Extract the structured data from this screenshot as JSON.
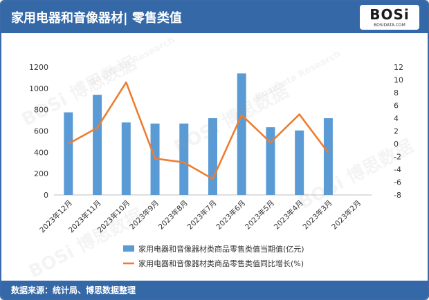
{
  "header": {
    "title": "家用电器和音像器材| 零售类值"
  },
  "logo": {
    "word": "BOSi",
    "sub": "BOSIDATA.COM"
  },
  "watermark": {
    "word": "BOSi",
    "cn": "博思数据",
    "en": "BosiData Research"
  },
  "footer": {
    "source": "数据来源：统计局、博思数据整理"
  },
  "colors": {
    "header_bg": "#3568a6",
    "bar": "#5b9bd5",
    "line": "#ed7d31"
  },
  "chart_data": {
    "type": "bar+line",
    "categories": [
      "2023年12月",
      "2023年11月",
      "2023年10月",
      "2023年9月",
      "2023年8月",
      "2023年7月",
      "2023年6月",
      "2023年5月",
      "2023年4月",
      "2023年3月",
      "2023年2月"
    ],
    "series": [
      {
        "name": "家用电器和音像器材类商品零售类值当期值(亿元)",
        "type": "bar",
        "axis": "left",
        "values": [
          775,
          940,
          680,
          670,
          670,
          720,
          1140,
          635,
          605,
          720,
          null
        ]
      },
      {
        "name": "家用电器和音像器材类商品零售类值同比增长(%)",
        "type": "line",
        "axis": "right",
        "values": [
          0.0,
          2.5,
          9.6,
          -2.3,
          -2.9,
          -5.5,
          4.5,
          0.2,
          4.6,
          -1.4,
          null
        ]
      }
    ],
    "y_left": {
      "min": 0,
      "max": 1200,
      "step": 200,
      "ticks": [
        "0",
        "200",
        "400",
        "600",
        "800",
        "1000",
        "1200"
      ]
    },
    "y_right": {
      "min": -8,
      "max": 12,
      "step": 2,
      "ticks": [
        "-8",
        "-6",
        "-4",
        "-2",
        "0",
        "2",
        "4",
        "6",
        "8",
        "10",
        "12"
      ]
    },
    "legend_position": "bottom",
    "grid": false
  }
}
